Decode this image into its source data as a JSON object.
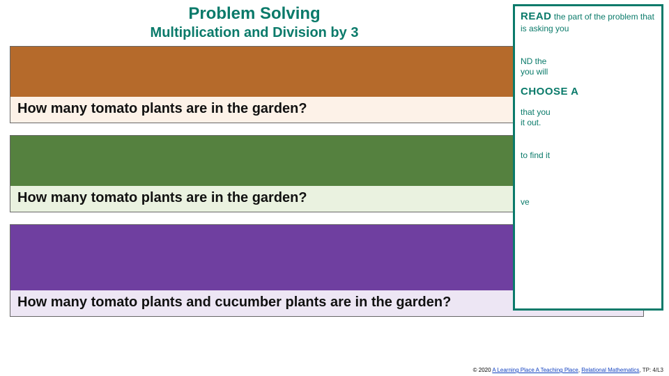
{
  "header": {
    "title": "Problem Solving",
    "subtitle": "Multiplication and Division by 3"
  },
  "problems": [
    {
      "cover_color": "#b56a2b",
      "bg_color": "#fdf2e8",
      "question": "How many tomato plants are in the garden?"
    },
    {
      "cover_color": "#55813f",
      "bg_color": "#eaf2e0",
      "question": "How many tomato plants are in the garden?"
    },
    {
      "cover_color": "#6f3fa0",
      "bg_color": "#ede6f4",
      "question": "How many tomato plants and cucumber plants are in the garden?"
    }
  ],
  "sidebar": {
    "steps": [
      {
        "keyword": "READ",
        "rest": " the part of the problem that is asking you"
      },
      {
        "keyword": "",
        "rest": ""
      },
      {
        "keyword": "",
        "rest": "ND the"
      },
      {
        "keyword": "",
        "rest": "you will"
      },
      {
        "keyword": "CHOOSE A",
        "rest": ""
      },
      {
        "keyword": "",
        "rest": " that you"
      },
      {
        "keyword": "",
        "rest": "it out."
      },
      {
        "keyword_gap": true
      },
      {
        "keyword": "",
        "rest": " to find it"
      },
      {
        "keyword_gap": true
      },
      {
        "keyword": "",
        "rest": "ve"
      }
    ]
  },
  "footer": {
    "year": "© 2020",
    "link1": "A Learning Place A Teaching Place",
    "link2": "Relational Mathematics",
    "tail": "TP: 4/L3"
  }
}
